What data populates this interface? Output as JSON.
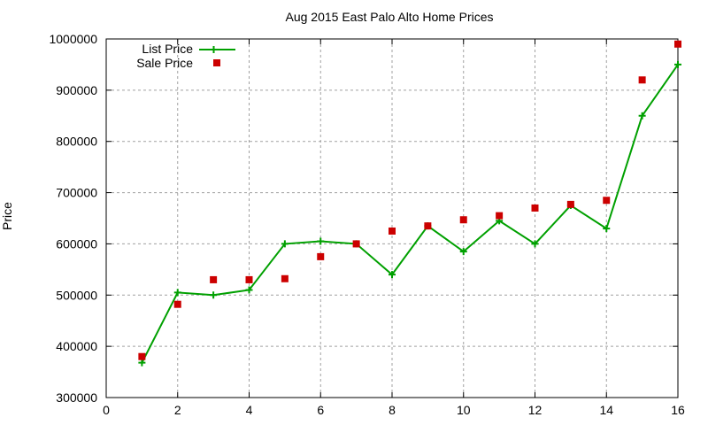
{
  "chart_data": {
    "type": "line",
    "title": "Aug 2015 East Palo Alto Home Prices",
    "xlabel": "",
    "ylabel": "Price",
    "xlim": [
      0,
      16
    ],
    "ylim": [
      300000,
      1000000
    ],
    "xticks": [
      0,
      2,
      4,
      6,
      8,
      10,
      12,
      14,
      16
    ],
    "yticks": [
      300000,
      400000,
      500000,
      600000,
      700000,
      800000,
      900000,
      1000000
    ],
    "grid": true,
    "legend_position": "top-left",
    "x": [
      1,
      2,
      3,
      4,
      5,
      6,
      7,
      8,
      9,
      10,
      11,
      12,
      13,
      14,
      15,
      16
    ],
    "series": [
      {
        "name": "List Price",
        "style": "linespoints",
        "marker": "plus",
        "color": "#00a000",
        "values": [
          368000,
          505000,
          500000,
          510000,
          600000,
          605000,
          600000,
          540000,
          635000,
          585000,
          645000,
          600000,
          675000,
          630000,
          850000,
          950000
        ]
      },
      {
        "name": "Sale Price",
        "style": "points",
        "marker": "square",
        "color": "#cc0000",
        "values": [
          380000,
          482000,
          530000,
          530000,
          532000,
          575000,
          600000,
          625000,
          635000,
          647000,
          655000,
          670000,
          677000,
          685000,
          920000,
          990000
        ]
      }
    ]
  }
}
